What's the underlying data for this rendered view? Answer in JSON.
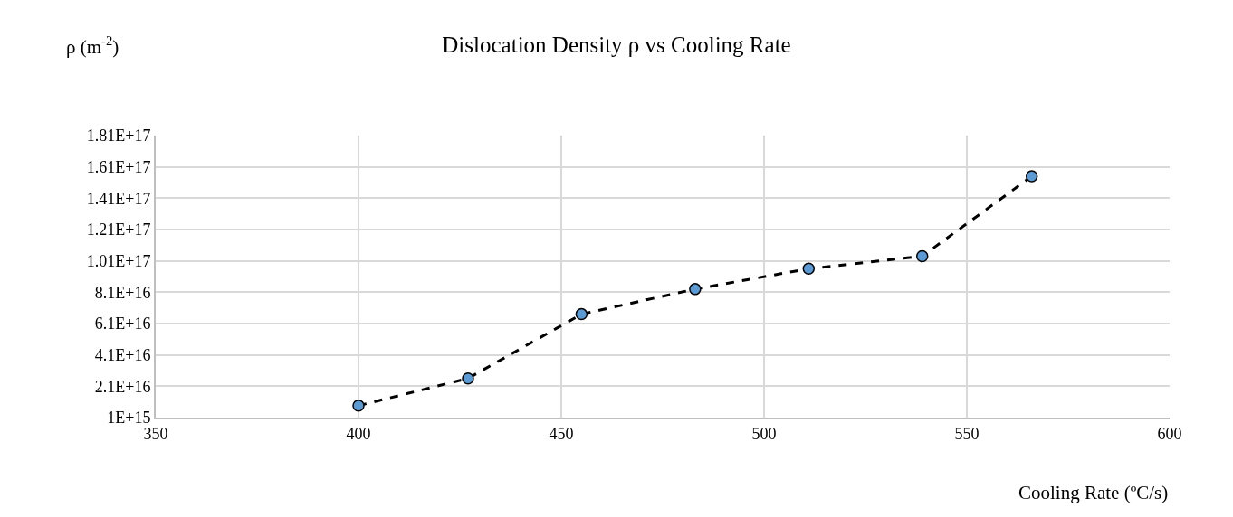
{
  "chart_data": {
    "type": "line",
    "title": "Dislocation Density ρ vs Cooling Rate",
    "xlabel": "Cooling Rate (ºC/s)",
    "ylabel": "ρ (m$^{-2}$)",
    "x": [
      400,
      427,
      455,
      483,
      511,
      539,
      566
    ],
    "series": [
      {
        "color": "#5b9bd5",
        "values": [
          8600000000000000.0,
          2.6e+16,
          6.7e+16,
          8.3e+16,
          9.6e+16,
          1.04e+17,
          1.55e+17
        ]
      }
    ],
    "xlim": [
      350,
      600
    ],
    "xticks": [
      350,
      400,
      450,
      500,
      550,
      600
    ],
    "ylim": [
      1000000000000000.0,
      1.81e+17
    ],
    "yticks": [
      {
        "value": 1000000000000000.0,
        "label": "1E+15"
      },
      {
        "value": 2.1e+16,
        "label": "2.1E+16"
      },
      {
        "value": 4.1e+16,
        "label": "4.1E+16"
      },
      {
        "value": 6.1e+16,
        "label": "6.1E+16"
      },
      {
        "value": 8.1e+16,
        "label": "8.1E+16"
      },
      {
        "value": 1.01e+17,
        "label": "1.01E+17"
      },
      {
        "value": 1.21e+17,
        "label": "1.21E+17"
      },
      {
        "value": 1.41e+17,
        "label": "1.41E+17"
      },
      {
        "value": 1.61e+17,
        "label": "1.61E+17"
      },
      {
        "value": 1.81e+17,
        "label": "1.81E+17"
      }
    ],
    "grid": true,
    "marker": "circle",
    "line_style": "dashed"
  }
}
